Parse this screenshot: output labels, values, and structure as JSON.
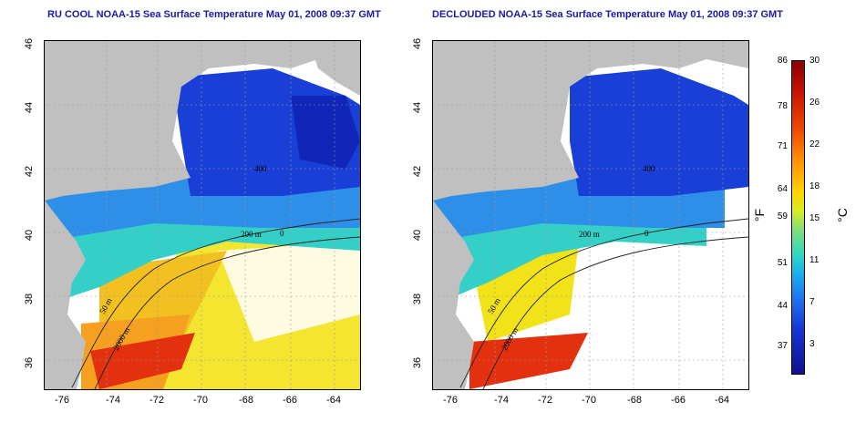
{
  "titles": {
    "left": "RU COOL NOAA-15 Sea Surface Temperature May 01, 2008 09:37 GMT",
    "right": "DECLOUDED NOAA-15 Sea Surface Temperature May 01, 2008 09:37 GMT"
  },
  "axes": {
    "lon_ticks": [
      "-76",
      "-74",
      "-72",
      "-70",
      "-68",
      "-66",
      "-64"
    ],
    "lat_ticks": [
      "46",
      "44",
      "42",
      "40",
      "38",
      "36"
    ]
  },
  "contour_labels": {
    "c400": "400",
    "c200": "200 m",
    "c50": "50 m",
    "c2000": "2000 m",
    "c0": "0"
  },
  "colorbar": {
    "fahrenheit": [
      "86",
      "78",
      "71",
      "64",
      "59",
      "51",
      "44",
      "37"
    ],
    "celsius": [
      "30",
      "26",
      "22",
      "18",
      "15",
      "11",
      "7",
      "3"
    ],
    "unit_f": "°F",
    "unit_c": "°C"
  },
  "colors": {
    "land": "#c0c0c0",
    "cold": "#1a3fd6",
    "deep_cold": "#1026b8",
    "cool": "#2e8fe8",
    "mid": "#34d0c8",
    "warm_yellow": "#f2e21a",
    "orange": "#f5a020",
    "hot": "#e3300e",
    "clouds": "#ffffff",
    "title": "#1a1aa6"
  }
}
